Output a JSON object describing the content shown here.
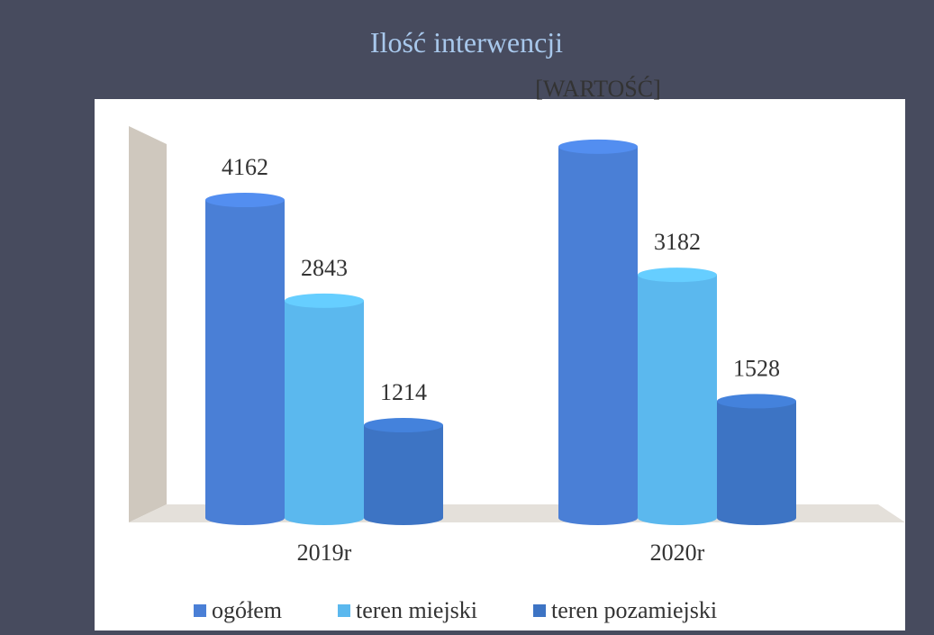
{
  "chart_data": {
    "type": "bar",
    "title": "Ilość interwencji",
    "categories": [
      "2019r",
      "2020r"
    ],
    "series": [
      {
        "name": "ogółem",
        "color": "#4a7fd6",
        "values": [
          4162,
          4860
        ],
        "value_labels": [
          null,
          "[WARTOŚĆ]"
        ]
      },
      {
        "name": "teren miejski",
        "color": "#5bb8ee",
        "values": [
          2843,
          3182
        ]
      },
      {
        "name": "teren pozamiejski",
        "color": "#3d74c4",
        "values": [
          1214,
          1528
        ]
      }
    ],
    "ylim": [
      0,
      5000
    ],
    "legend": "bottom"
  }
}
